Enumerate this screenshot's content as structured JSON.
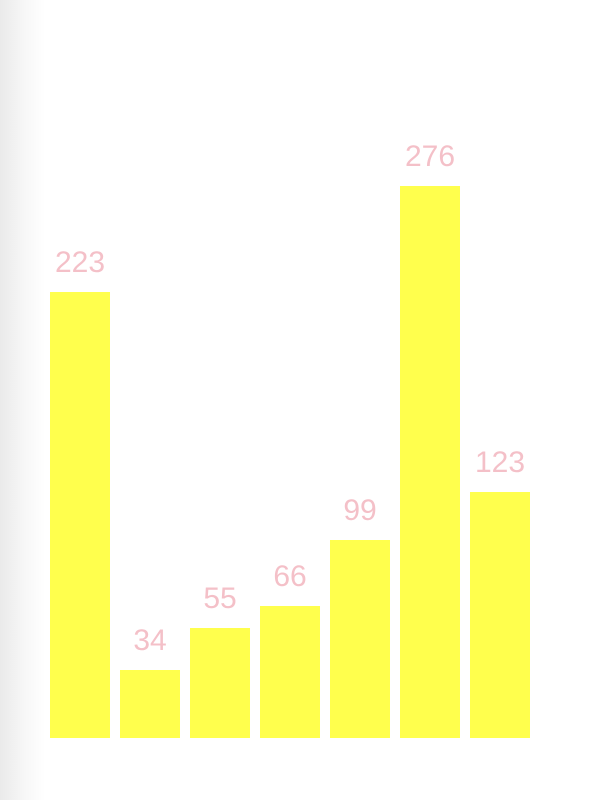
{
  "chart_data": {
    "type": "bar",
    "values": [
      223,
      34,
      55,
      66,
      99,
      276,
      123
    ],
    "data_labels": [
      "223",
      "34",
      "55",
      "66",
      "99",
      "276",
      "123"
    ],
    "colors": {
      "bar": "#ffff4d",
      "label": "#f4c0c8"
    },
    "ylim": [
      0,
      276
    ],
    "grid": false,
    "legend": "none"
  }
}
